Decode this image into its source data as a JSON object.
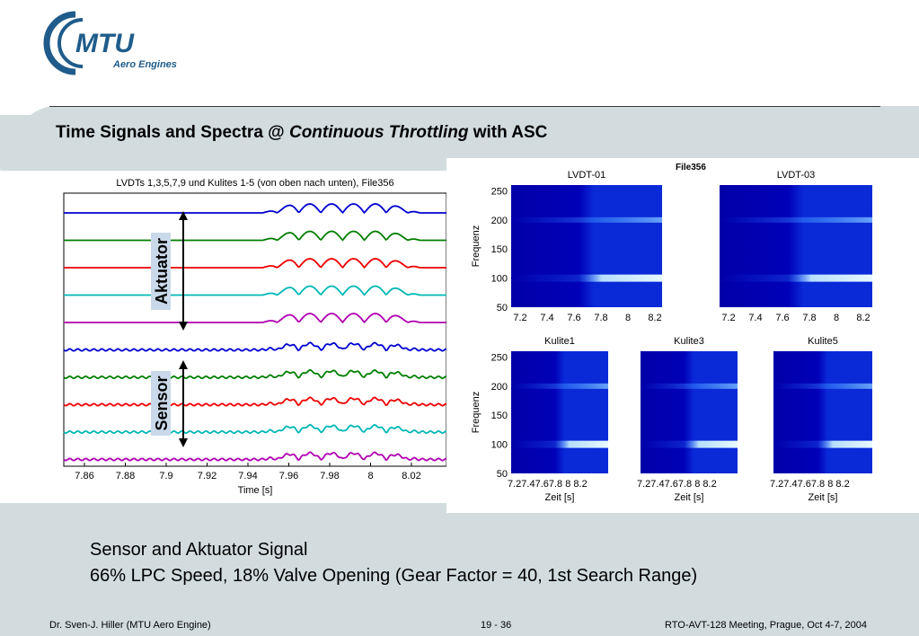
{
  "header": {
    "logo_text": "MTU",
    "logo_subtext": "Aero Engines",
    "title_part1": "Time Signals and Spectra @ ",
    "title_italic": "Continuous Throttling",
    "title_part2": " with ASC"
  },
  "left_figure": {
    "title": "LVDTs 1,3,5,7,9 und Kulites 1-5 (von oben nach unten), File356",
    "x_ticks": [
      "7.86",
      "7.88",
      "7.9",
      "7.92",
      "7.94",
      "7.96",
      "7.98",
      "8",
      "8.02"
    ],
    "xlabel": "Time [s]",
    "label_top": "Aktuator",
    "label_bottom": "Sensor",
    "trace_colors": [
      "#0000d0",
      "#007f00",
      "#ee0000",
      "#00b7b7",
      "#b000b0",
      "#0000d0",
      "#007f00",
      "#ee0000",
      "#00b7b7",
      "#b000b0"
    ]
  },
  "right_figure": {
    "file_label": "File356",
    "panels": [
      {
        "title": "LVDT-01",
        "ylabel": "Frequenz",
        "xlabel": ""
      },
      {
        "title": "LVDT-03",
        "ylabel": "",
        "xlabel": ""
      },
      {
        "title": "Kulite1",
        "ylabel": "Frequenz",
        "xlabel": "Zeit [s]"
      },
      {
        "title": "Kulite3",
        "ylabel": "",
        "xlabel": "Zeit [s]"
      },
      {
        "title": "Kulite5",
        "ylabel": "",
        "xlabel": "Zeit [s]"
      }
    ],
    "y_ticks": [
      "250",
      "200",
      "150",
      "100",
      "50"
    ],
    "x_ticks_wide": [
      "7.2",
      "7.4",
      "7.6",
      "7.8",
      "8",
      "8.2"
    ],
    "x_ticks_narrow": "7.27.47.67.8  8  8.2"
  },
  "caption": {
    "line1": "Sensor and Aktuator Signal",
    "line2": "66% LPC Speed, 18% Valve Opening (Gear Factor = 40, 1st Search Range)"
  },
  "footer": {
    "author": "Dr. Sven-J. Hiller (MTU Aero Engine)",
    "page": "19 - 36",
    "meeting": "RTO-AVT-128 Meeting, Prague, Oct 4-7, 2004"
  }
}
